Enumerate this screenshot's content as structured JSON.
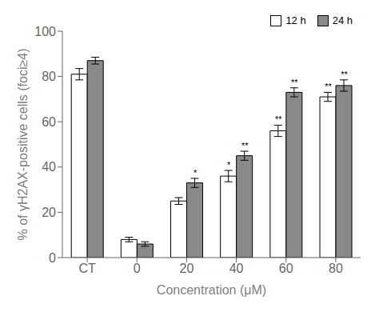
{
  "chart_data": {
    "type": "bar",
    "categories": [
      "CT",
      "0",
      "20",
      "40",
      "60",
      "80"
    ],
    "series": [
      {
        "name": "12 h",
        "color": "#ffffff",
        "values": [
          81,
          8,
          25,
          36,
          56,
          71
        ],
        "errors": [
          2.5,
          1.0,
          1.5,
          2.5,
          2.5,
          2.0
        ],
        "annotations": [
          null,
          null,
          null,
          "*",
          "**",
          "**"
        ]
      },
      {
        "name": "24 h",
        "color": "#898989",
        "values": [
          87,
          6,
          33,
          45,
          73,
          76
        ],
        "errors": [
          1.5,
          1.0,
          2.0,
          2.0,
          2.0,
          2.5
        ],
        "annotations": [
          null,
          null,
          "*",
          "**",
          "**",
          "**"
        ]
      }
    ],
    "xlabel": "Concentration  (μM)",
    "ylabel": "% of γH2AX-positive cells (foci≥4)",
    "ylim": [
      0,
      100
    ],
    "yticks": [
      0,
      20,
      40,
      60,
      80,
      100
    ],
    "legend": "upper right",
    "grid": false
  }
}
